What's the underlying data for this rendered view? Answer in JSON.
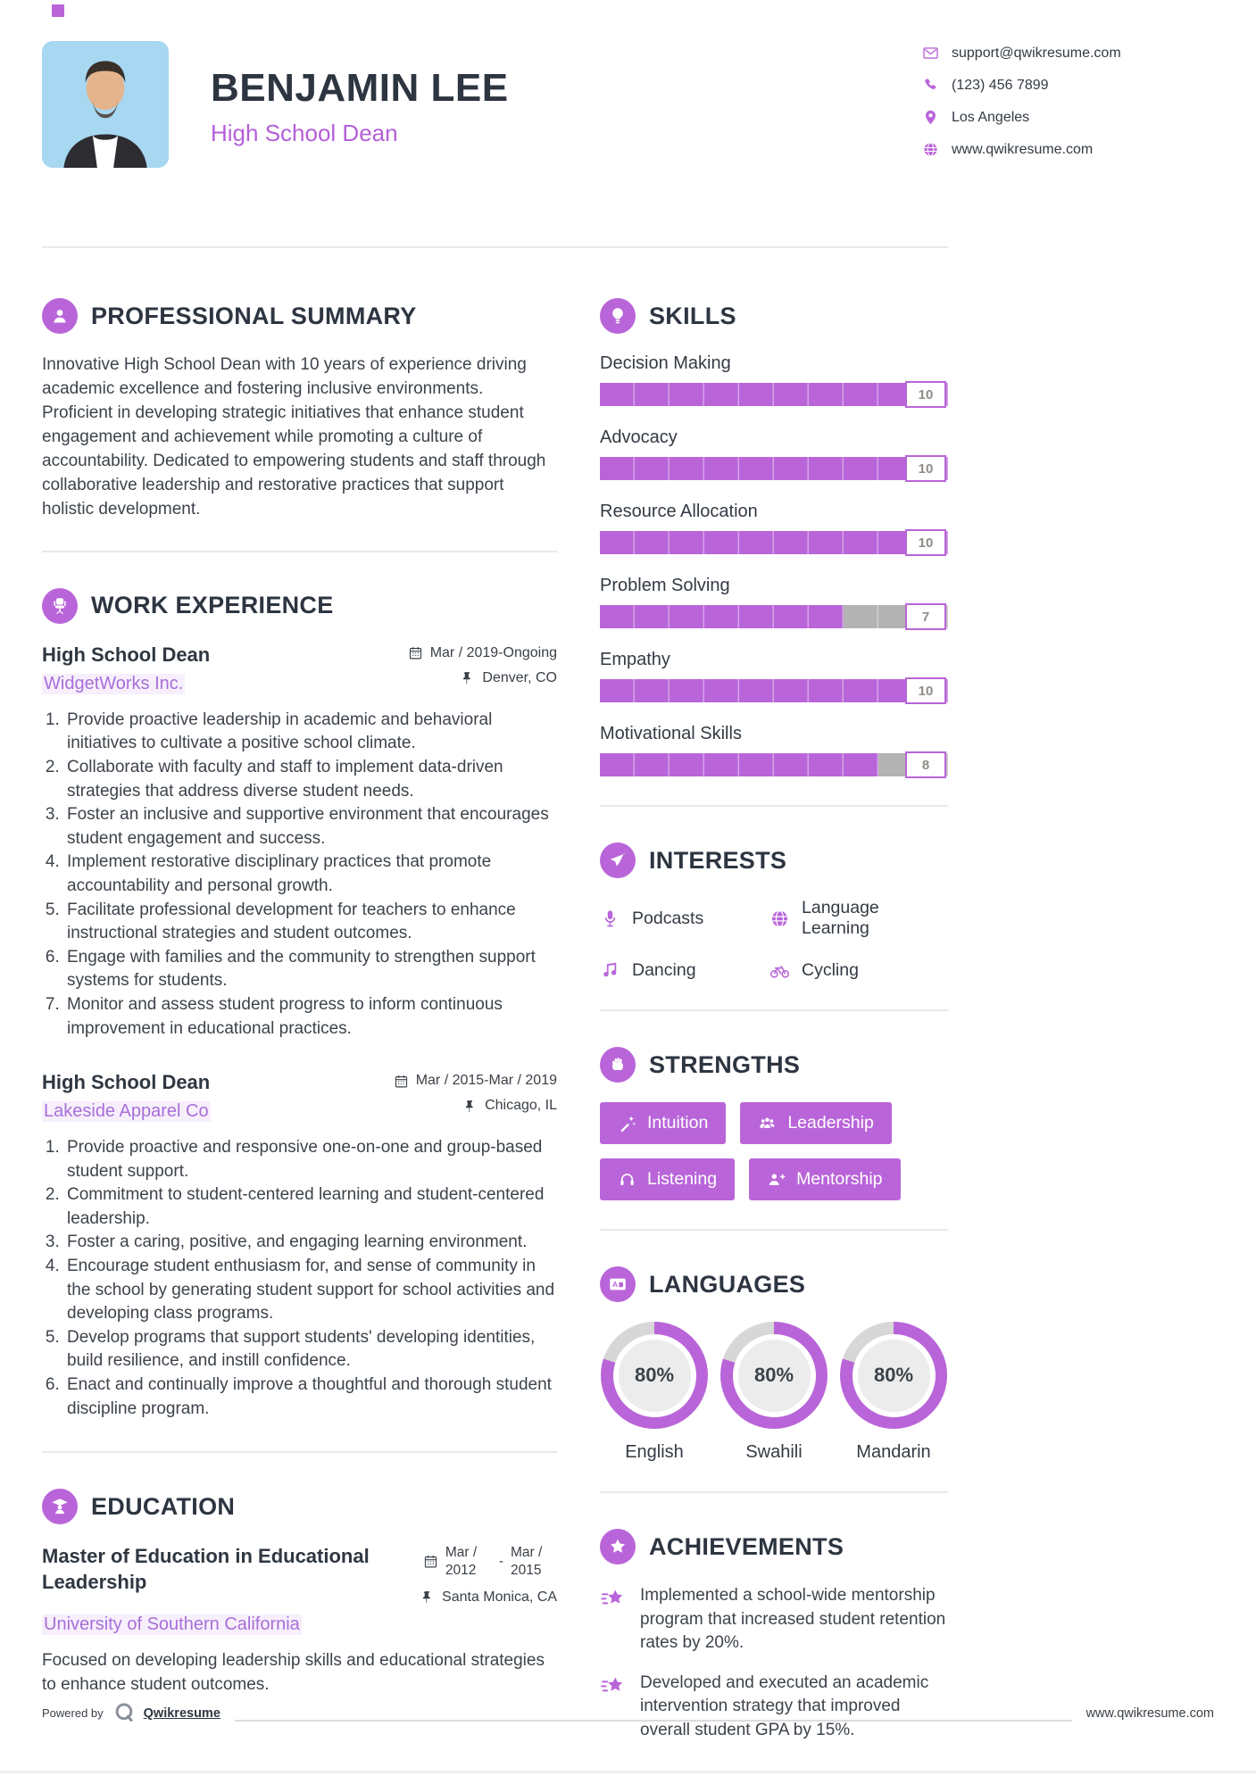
{
  "theme": {
    "accent": "#b965d9",
    "title_purple": "#b45fd9",
    "photo_blue": "#a7d7f1",
    "bar_track_gray": "#b3b3b3",
    "heading_dark": "#2d3541",
    "body_gray": "#3d434b"
  },
  "header": {
    "name": "BENJAMIN LEE",
    "title": "High School Dean",
    "contact": [
      {
        "icon": "email-icon",
        "text": "support@qwikresume.com"
      },
      {
        "icon": "phone-icon",
        "text": "(123) 456 7899"
      },
      {
        "icon": "location-pin-icon",
        "text": "Los Angeles"
      },
      {
        "icon": "globe-icon",
        "text": "www.qwikresume.com"
      }
    ]
  },
  "summary": {
    "heading": "PROFESSIONAL SUMMARY",
    "text": "Innovative High School Dean with 10 years of experience driving academic excellence and fostering inclusive environments. Proficient in developing strategic initiatives that enhance student engagement and achievement while promoting a culture of accountability. Dedicated to empowering students and staff through collaborative leadership and restorative practices that support holistic development."
  },
  "experience": {
    "heading": "WORK EXPERIENCE",
    "jobs": [
      {
        "title": "High School Dean",
        "company": "WidgetWorks Inc.",
        "date": "Mar / 2019-Ongoing",
        "location": "Denver, CO",
        "bullets": [
          "Provide proactive leadership in academic and behavioral initiatives to cultivate a positive school climate.",
          "Collaborate with faculty and staff to implement data-driven strategies that address diverse student needs.",
          "Foster an inclusive and supportive environment that encourages student engagement and success.",
          "Implement restorative disciplinary practices that promote accountability and personal growth.",
          "Facilitate professional development for teachers to enhance instructional strategies and student outcomes.",
          "Engage with families and the community to strengthen support systems for students.",
          "Monitor and assess student progress to inform continuous improvement in educational practices."
        ]
      },
      {
        "title": "High School Dean",
        "company": "Lakeside Apparel Co",
        "date": "Mar / 2015-Mar / 2019",
        "location": "Chicago, IL",
        "bullets": [
          "Provide proactive and responsive one-on-one and group-based student support.",
          "Commitment to student-centered learning and student-centered leadership.",
          "Foster a caring, positive, and engaging learning environment.",
          "Encourage student enthusiasm for, and sense of community in the school by generating student support for school activities and developing class programs.",
          "Develop programs that support students' developing identities, build resilience, and instill confidence.",
          "Enact and continually improve a thoughtful and thorough student discipline program."
        ]
      }
    ]
  },
  "education": {
    "heading": "EDUCATION",
    "degree": "Master of Education in Educational Leadership",
    "school": "University of Southern California",
    "date_start": "Mar / 2012",
    "date_separator": "-",
    "date_end": "Mar / 2015",
    "location": "Santa Monica, CA",
    "description": "Focused on developing leadership skills and educational strategies to enhance student outcomes."
  },
  "skills": {
    "heading": "SKILLS",
    "max_score": 10,
    "items": [
      {
        "name": "Decision Making",
        "score": 10
      },
      {
        "name": "Advocacy",
        "score": 10
      },
      {
        "name": "Resource Allocation",
        "score": 10
      },
      {
        "name": "Problem Solving",
        "score": 7
      },
      {
        "name": "Empathy",
        "score": 10
      },
      {
        "name": "Motivational Skills",
        "score": 8
      }
    ]
  },
  "interests": {
    "heading": "INTERESTS",
    "items": [
      {
        "icon": "microphone-icon",
        "label": "Podcasts"
      },
      {
        "icon": "globe-icon",
        "label": "Language Learning"
      },
      {
        "icon": "music-note-icon",
        "label": "Dancing"
      },
      {
        "icon": "bicycle-icon",
        "label": "Cycling"
      }
    ]
  },
  "strengths": {
    "heading": "STRENGTHS",
    "items": [
      {
        "icon": "magic-wand-icon",
        "label": "Intuition"
      },
      {
        "icon": "group-icon",
        "label": "Leadership"
      },
      {
        "icon": "headphones-icon",
        "label": "Listening"
      },
      {
        "icon": "person-plus-icon",
        "label": "Mentorship"
      }
    ]
  },
  "languages": {
    "heading": "LANGUAGES",
    "items": [
      {
        "name": "English",
        "percent": 80,
        "percent_label": "80%"
      },
      {
        "name": "Swahili",
        "percent": 80,
        "percent_label": "80%"
      },
      {
        "name": "Mandarin",
        "percent": 80,
        "percent_label": "80%"
      }
    ]
  },
  "achievements": {
    "heading": "ACHIEVEMENTS",
    "items": [
      "Implemented a school-wide mentorship program that increased student retention rates by 20%.",
      "Developed and executed an academic intervention strategy that improved overall student GPA by 15%."
    ]
  },
  "footer": {
    "powered_by": "Powered by",
    "brand": "Qwikresume",
    "website": "www.qwikresume.com"
  }
}
